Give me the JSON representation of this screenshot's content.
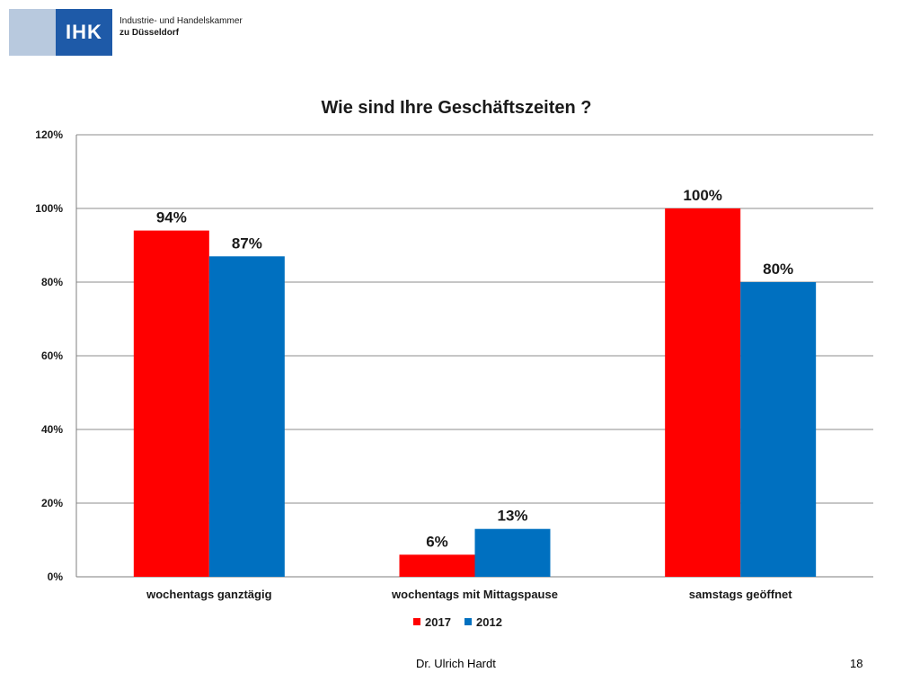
{
  "header": {
    "logo_mark": "IHK",
    "logo_line1": "Industrie- und Handelskammer",
    "logo_line2": "zu Düsseldorf"
  },
  "chart_data": {
    "type": "bar",
    "title": "Wie sind Ihre Geschäftszeiten ?",
    "categories": [
      "wochentags ganztägig",
      "wochentags mit Mittagspause",
      "samstags geöffnet"
    ],
    "series": [
      {
        "name": "2017",
        "values": [
          94,
          6,
          100
        ],
        "labels": [
          "94%",
          "6%",
          "100%"
        ],
        "color": "#ff0000"
      },
      {
        "name": "2012",
        "values": [
          87,
          13,
          80
        ],
        "labels": [
          "87%",
          "13%",
          "80%"
        ],
        "color": "#0070c0"
      }
    ],
    "yticks": [
      "0%",
      "20%",
      "40%",
      "60%",
      "80%",
      "100%",
      "120%"
    ],
    "ylim": [
      0,
      120
    ],
    "grid": true,
    "legend": "bottom"
  },
  "footer": {
    "author": "Dr. Ulrich Hardt",
    "page": "18"
  }
}
